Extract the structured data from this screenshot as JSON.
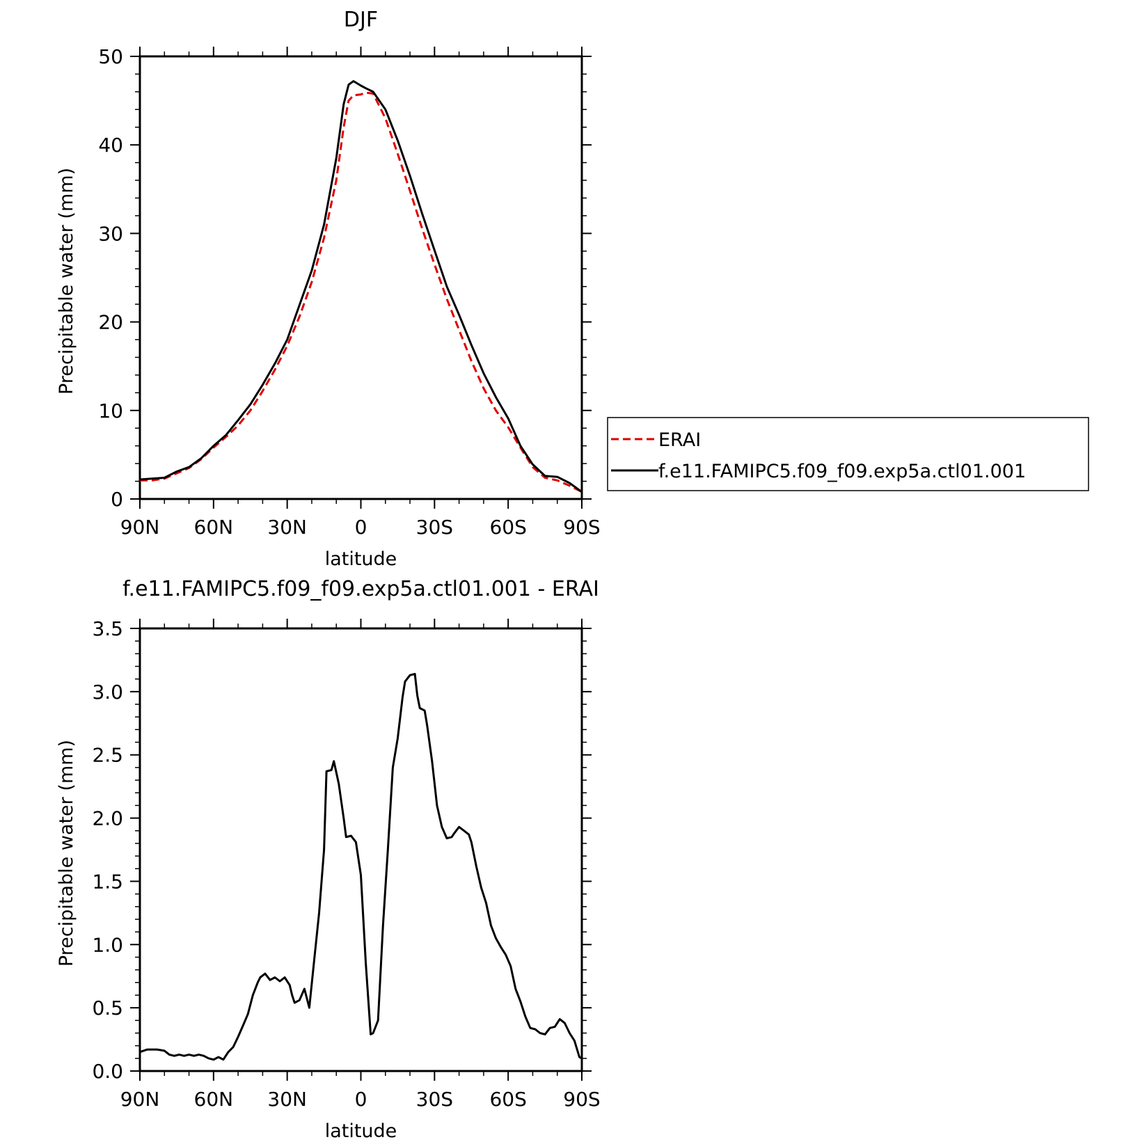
{
  "chart_data": [
    {
      "type": "line",
      "title": "DJF",
      "xlabel": "latitude",
      "ylabel": "Precipitable water (mm)",
      "xlim": [
        -90,
        90
      ],
      "ylim": [
        0,
        50
      ],
      "x_ticks": [
        -90,
        -60,
        -30,
        0,
        30,
        60,
        90
      ],
      "x_tick_labels": [
        "90N",
        "60N",
        "30N",
        "0",
        "30S",
        "60S",
        "90S"
      ],
      "y_ticks": [
        0,
        10,
        20,
        30,
        40,
        50
      ],
      "y_tick_labels": [
        "0",
        "10",
        "20",
        "30",
        "40",
        "50"
      ],
      "legend_position": "outside right",
      "series": [
        {
          "name": "ERAI",
          "color": "#e00000",
          "dash": "dashed",
          "x": [
            -90,
            -85,
            -80,
            -75,
            -70,
            -65,
            -60,
            -55,
            -50,
            -45,
            -40,
            -35,
            -30,
            -25,
            -20,
            -15,
            -10,
            -7,
            -5,
            -3,
            0,
            2,
            5,
            10,
            15,
            20,
            25,
            30,
            35,
            40,
            45,
            50,
            55,
            60,
            65,
            70,
            75,
            80,
            85,
            90
          ],
          "y": [
            2.1,
            2.1,
            2.3,
            2.9,
            3.5,
            4.5,
            5.8,
            7.0,
            8.3,
            10.0,
            12.2,
            14.6,
            17.3,
            20.6,
            24.5,
            29.5,
            36.0,
            42.0,
            45.0,
            45.6,
            45.7,
            45.9,
            45.8,
            43.0,
            39.0,
            34.8,
            30.5,
            26.5,
            22.6,
            19.1,
            15.6,
            12.5,
            10.0,
            8.1,
            5.8,
            3.6,
            2.4,
            2.1,
            1.5,
            0.8
          ]
        },
        {
          "name": "f.e11.FAMIPC5.f09_f09.exp5a.ctl01.001",
          "color": "#000000",
          "dash": "solid",
          "x": [
            -90,
            -85,
            -80,
            -75,
            -70,
            -65,
            -60,
            -55,
            -50,
            -45,
            -40,
            -35,
            -30,
            -25,
            -20,
            -15,
            -10,
            -7,
            -5,
            -3,
            0,
            2,
            5,
            10,
            15,
            20,
            25,
            30,
            35,
            40,
            45,
            50,
            55,
            60,
            65,
            70,
            75,
            80,
            85,
            90
          ],
          "y": [
            2.2,
            2.3,
            2.4,
            3.1,
            3.6,
            4.6,
            6.0,
            7.2,
            8.9,
            10.7,
            12.9,
            15.3,
            18.0,
            21.9,
            25.8,
            31.0,
            38.5,
            44.6,
            46.8,
            47.2,
            46.7,
            46.4,
            46.0,
            44.0,
            40.5,
            36.5,
            32.2,
            28.1,
            24.0,
            20.8,
            17.4,
            14.2,
            11.5,
            9.1,
            6.0,
            3.9,
            2.6,
            2.5,
            1.8,
            0.8
          ]
        }
      ]
    },
    {
      "type": "line",
      "title": "f.e11.FAMIPC5.f09_f09.exp5a.ctl01.001 - ERAI",
      "xlabel": "latitude",
      "ylabel": "Precipitable water (mm)",
      "xlim": [
        -90,
        90
      ],
      "ylim": [
        0,
        3.5
      ],
      "x_ticks": [
        -90,
        -60,
        -30,
        0,
        30,
        60,
        90
      ],
      "x_tick_labels": [
        "90N",
        "60N",
        "30N",
        "0",
        "30S",
        "60S",
        "90S"
      ],
      "y_ticks": [
        0,
        0.5,
        1.0,
        1.5,
        2.0,
        2.5,
        3.0,
        3.5
      ],
      "y_tick_labels": [
        "0.0",
        "0.5",
        "1.0",
        "1.5",
        "2.0",
        "2.5",
        "3.0",
        "3.5"
      ],
      "series": [
        {
          "color": "#000000",
          "dash": "solid",
          "x": [
            -90,
            -87,
            -85,
            -83,
            -80,
            -78,
            -76,
            -74,
            -72,
            -70,
            -68,
            -66,
            -64,
            -62,
            -60,
            -58,
            -56,
            -54,
            -52,
            -50,
            -48,
            -46,
            -44,
            -42,
            -41,
            -39,
            -37,
            -35,
            -33,
            -31,
            -29,
            -28,
            -27,
            -25,
            -23,
            -21,
            -19,
            -17,
            -15,
            -14,
            -12,
            -11,
            -9,
            -7,
            -6,
            -4,
            -2,
            0,
            2,
            4,
            5,
            7,
            9,
            11,
            13,
            15,
            17,
            18,
            20,
            22,
            23,
            24,
            26,
            27,
            29,
            31,
            33,
            35,
            37,
            38,
            40,
            42,
            44,
            45,
            47,
            49,
            51,
            53,
            55,
            57,
            59,
            61,
            63,
            65,
            67,
            69,
            71,
            73,
            75,
            77,
            79,
            81,
            83,
            85,
            87,
            89,
            90
          ],
          "y": [
            0.15,
            0.17,
            0.17,
            0.17,
            0.16,
            0.13,
            0.12,
            0.13,
            0.12,
            0.13,
            0.12,
            0.13,
            0.12,
            0.1,
            0.09,
            0.11,
            0.09,
            0.15,
            0.19,
            0.27,
            0.36,
            0.45,
            0.6,
            0.7,
            0.74,
            0.77,
            0.72,
            0.74,
            0.71,
            0.74,
            0.68,
            0.6,
            0.54,
            0.56,
            0.65,
            0.5,
            0.88,
            1.25,
            1.75,
            2.37,
            2.38,
            2.45,
            2.27,
            2.0,
            1.85,
            1.86,
            1.81,
            1.55,
            0.85,
            0.29,
            0.3,
            0.4,
            1.15,
            1.75,
            2.4,
            2.63,
            2.96,
            3.08,
            3.13,
            3.14,
            2.97,
            2.87,
            2.85,
            2.73,
            2.45,
            2.1,
            1.93,
            1.84,
            1.85,
            1.88,
            1.93,
            1.9,
            1.87,
            1.81,
            1.62,
            1.45,
            1.33,
            1.15,
            1.05,
            0.98,
            0.92,
            0.83,
            0.65,
            0.55,
            0.43,
            0.34,
            0.33,
            0.3,
            0.29,
            0.34,
            0.35,
            0.41,
            0.38,
            0.3,
            0.24,
            0.11,
            0.1
          ]
        }
      ]
    }
  ]
}
